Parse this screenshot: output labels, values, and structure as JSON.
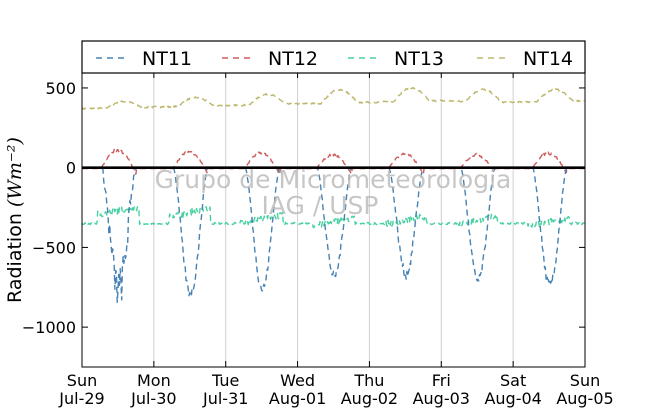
{
  "chart_data": {
    "type": "line",
    "title": "",
    "ylabel": "Radiation",
    "ylabel_unit_html": "(Wm⁻²)",
    "ylim": [
      -1250,
      600
    ],
    "y_ticks": [
      500,
      0,
      -500,
      -1000
    ],
    "y_tick_labels": [
      "500",
      "0",
      "−500",
      "−1000"
    ],
    "grid": "vertical-only",
    "legend_position": "top",
    "watermark": [
      "Grupo de Micrometeorologia",
      "IAG / USP"
    ],
    "x_start": "Jul-29 00:00",
    "x_end": "Aug-05 00:00",
    "x_units": "days",
    "x_ticks": [
      {
        "day": "Sun",
        "date": "Jul-29"
      },
      {
        "day": "Mon",
        "date": "Jul-30"
      },
      {
        "day": "Tue",
        "date": "Jul-31"
      },
      {
        "day": "Wed",
        "date": "Aug-01"
      },
      {
        "day": "Thu",
        "date": "Aug-02"
      },
      {
        "day": "Fri",
        "date": "Aug-03"
      },
      {
        "day": "Sat",
        "date": "Aug-04"
      },
      {
        "day": "Sun",
        "date": "Aug-05"
      }
    ],
    "series": [
      {
        "name": "NT11",
        "color": "#4682b4",
        "daily_min": [
          -760,
          -790,
          -760,
          -680,
          -670,
          -710,
          -740
        ],
        "night_value": 0,
        "day_window_hours": [
          6.5,
          18
        ]
      },
      {
        "name": "NT12",
        "color": "#cd5c5c",
        "daily_max": [
          120,
          110,
          100,
          90,
          95,
          90,
          100
        ],
        "night_value": -5,
        "day_window_hours": [
          6.5,
          18
        ]
      },
      {
        "name": "NT13",
        "color": "#48d1a0",
        "baseline": -340,
        "daily_peak": [
          -270,
          -280,
          -320,
          -340,
          -330,
          -330,
          -340
        ],
        "night_value": -350
      },
      {
        "name": "NT14",
        "color": "#bdb76b",
        "night_values": [
          370,
          380,
          390,
          400,
          410,
          420,
          410,
          420
        ],
        "daily_max": [
          415,
          440,
          460,
          490,
          500,
          490,
          490
        ]
      }
    ]
  }
}
